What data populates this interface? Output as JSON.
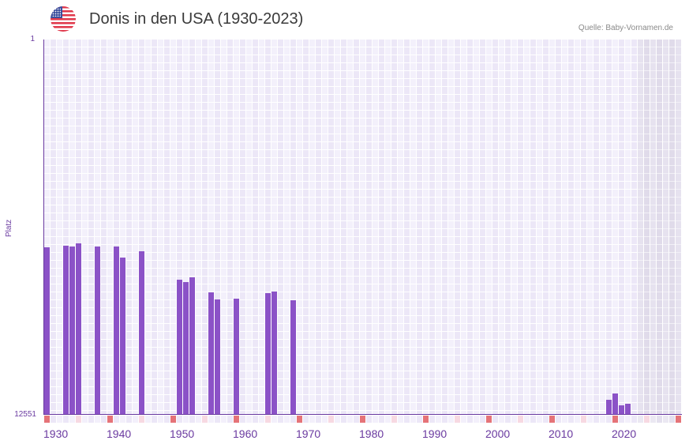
{
  "header": {
    "title": "Donis in den USA (1930-2023)",
    "source": "Quelle: Baby-Vornamen.de",
    "flag_icon": "us-flag-icon"
  },
  "colors": {
    "bar": "#8b52c7",
    "axis": "#6a3aa0",
    "decade_marker": "#e57378",
    "half_decade_marker": "#f7d9e2"
  },
  "chart_data": {
    "type": "bar",
    "title": "Donis in den USA (1930-2023)",
    "xlabel": "",
    "ylabel": "Platz",
    "y_inverted": true,
    "ylim": [
      1,
      12551
    ],
    "xlim": [
      1930,
      2030
    ],
    "y_ticks": [
      "1",
      "12551"
    ],
    "x_ticks": [
      "1930",
      "1940",
      "1950",
      "1960",
      "1970",
      "1980",
      "1990",
      "2000",
      "2010",
      "2020"
    ],
    "grid": true,
    "shaded_future_from": 2024,
    "categories": [
      1930,
      1933,
      1934,
      1935,
      1938,
      1941,
      1942,
      1945,
      1951,
      1952,
      1953,
      1956,
      1957,
      1960,
      1965,
      1966,
      1969,
      2019,
      2020,
      2021,
      2022
    ],
    "values": [
      6950,
      6897,
      6923,
      6818,
      6923,
      6923,
      7293,
      7082,
      8033,
      8112,
      7954,
      8456,
      8694,
      8667,
      8482,
      8429,
      8720,
      12049,
      11837,
      12234,
      12181
    ]
  }
}
